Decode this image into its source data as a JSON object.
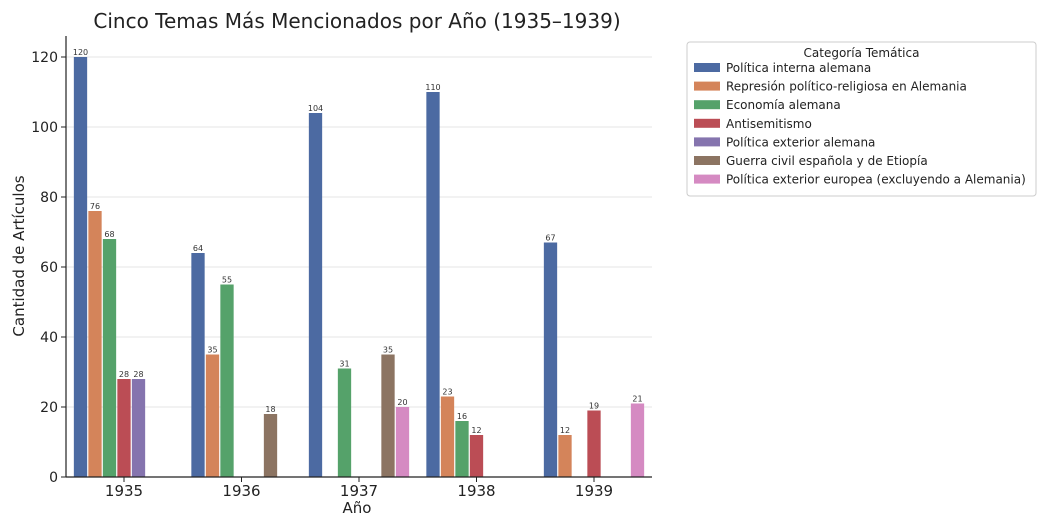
{
  "chart_data": {
    "type": "bar",
    "title": "Cinco Temas Más Mencionados por Año (1935–1939)",
    "xlabel": "Año",
    "ylabel": "Cantidad de Artículos",
    "categories": [
      "1935",
      "1936",
      "1937",
      "1938",
      "1939"
    ],
    "ylim": [
      0,
      126
    ],
    "yticks": [
      0,
      20,
      40,
      60,
      80,
      100,
      120
    ],
    "grid": true,
    "legend_title": "Categoría Temática",
    "legend_position": "outside-top-right",
    "series": [
      {
        "name": "Política interna alemana",
        "color": "#4c6aa2",
        "values": [
          120,
          64,
          104,
          110,
          67
        ]
      },
      {
        "name": "Represión político-religiosa en Alemania",
        "color": "#d4845a",
        "values": [
          76,
          35,
          0,
          23,
          12
        ]
      },
      {
        "name": "Economía alemana",
        "color": "#55a26a",
        "values": [
          68,
          55,
          31,
          16,
          0
        ]
      },
      {
        "name": "Antisemitismo",
        "color": "#bb4d55",
        "values": [
          28,
          0,
          0,
          12,
          19
        ]
      },
      {
        "name": "Política exterior alemana",
        "color": "#8574ae",
        "values": [
          28,
          0,
          0,
          0,
          0
        ]
      },
      {
        "name": "Guerra civil española y de Etiopía",
        "color": "#8c7462",
        "values": [
          0,
          18,
          35,
          0,
          0
        ]
      },
      {
        "name": "Política exterior europea (excluyendo a Alemania)",
        "color": "#d58ac2",
        "values": [
          0,
          0,
          20,
          0,
          21
        ]
      }
    ]
  }
}
